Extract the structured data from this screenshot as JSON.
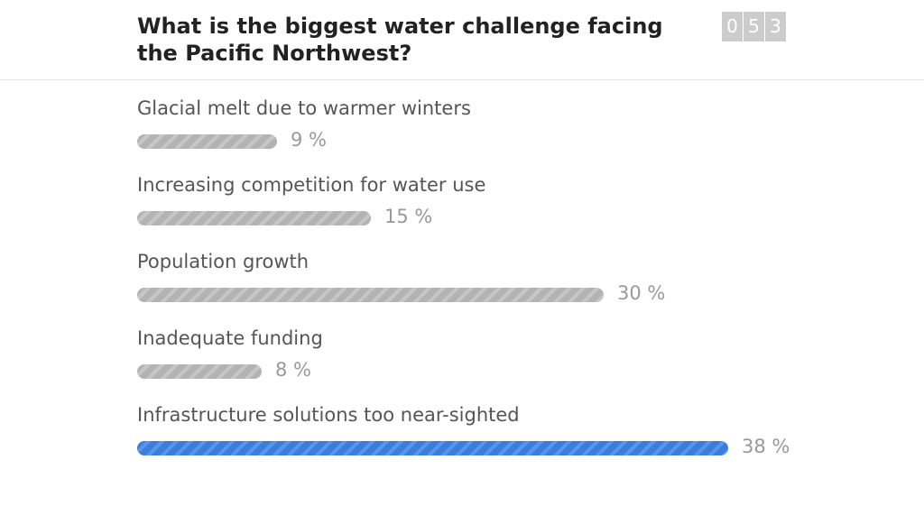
{
  "poll": {
    "question": "What is the biggest water challenge facing the Pacific Northwest?",
    "counter_digits": [
      "0",
      "5",
      "3"
    ]
  },
  "colors": {
    "bar": "#b3b3b3",
    "bar_stripe": "#c6c6c6",
    "highlight": "#3b7ddd",
    "highlight_stripe": "#5a95ea"
  },
  "chart_data": {
    "type": "bar",
    "orientation": "horizontal",
    "title": "What is the biggest water challenge facing the Pacific Northwest?",
    "categories": [
      "Glacial melt due to warmer winters",
      "Increasing competition for water use",
      "Population growth",
      "Inadequate funding",
      "Infrastructure solutions too near-sighted"
    ],
    "values": [
      9,
      15,
      30,
      8,
      38
    ],
    "value_labels": [
      "9 %",
      "15 %",
      "30 %",
      "8 %",
      "38 %"
    ],
    "xlim": [
      0,
      38
    ],
    "highlighted_index": 4,
    "grid": false,
    "legend": "none"
  }
}
